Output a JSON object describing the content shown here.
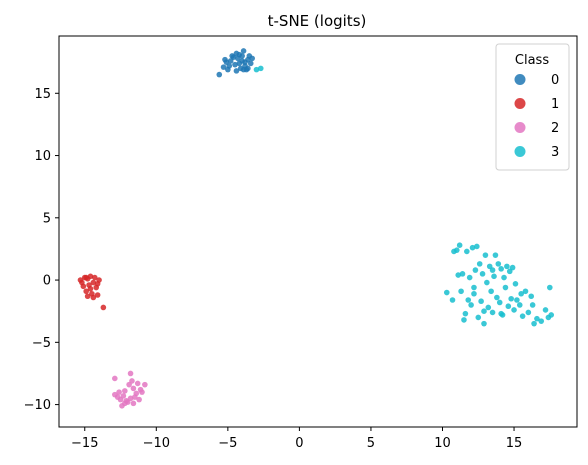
{
  "chart_data": {
    "type": "scatter",
    "title": "t-SNE (logits)",
    "xlabel": "",
    "ylabel": "",
    "xlim": [
      -16.8,
      19.4
    ],
    "ylim": [
      -11.8,
      19.6
    ],
    "xticks": [
      -15,
      -10,
      -5,
      0,
      5,
      10,
      15
    ],
    "yticks": [
      -10,
      -5,
      0,
      5,
      10,
      15
    ],
    "xtick_labels": [
      "−15",
      "−10",
      "−5",
      "0",
      "5",
      "10",
      "15"
    ],
    "ytick_labels": [
      "−10",
      "−5",
      "0",
      "5",
      "10",
      "15"
    ],
    "grid": false,
    "legend": {
      "title": "Class",
      "placement": "top-right",
      "entries": [
        "0",
        "1",
        "2",
        "3"
      ]
    },
    "series": [
      {
        "name": "0",
        "color": "#1f77b4",
        "points": [
          [
            -5.6,
            16.5
          ],
          [
            -5.3,
            17.1
          ],
          [
            -5.1,
            17.5
          ],
          [
            -5.0,
            16.9
          ],
          [
            -4.8,
            17.6
          ],
          [
            -4.7,
            18.0
          ],
          [
            -4.5,
            17.3
          ],
          [
            -4.4,
            16.8
          ],
          [
            -4.3,
            17.8
          ],
          [
            -4.2,
            18.1
          ],
          [
            -4.1,
            17.0
          ],
          [
            -4.0,
            17.6
          ],
          [
            -3.9,
            18.4
          ],
          [
            -3.8,
            17.2
          ],
          [
            -3.7,
            16.9
          ],
          [
            -3.6,
            17.7
          ],
          [
            -3.5,
            18.0
          ],
          [
            -3.4,
            17.4
          ],
          [
            -4.9,
            17.2
          ],
          [
            -4.6,
            17.9
          ],
          [
            -3.9,
            16.9
          ],
          [
            -4.2,
            17.4
          ],
          [
            -3.6,
            17.0
          ],
          [
            -4.4,
            18.2
          ],
          [
            -3.3,
            17.8
          ],
          [
            -5.2,
            17.7
          ],
          [
            -4.0,
            18.0
          ],
          [
            -3.8,
            17.5
          ]
        ]
      },
      {
        "name": "1",
        "color": "#d62728",
        "points": [
          [
            -15.3,
            0.0
          ],
          [
            -15.1,
            -0.5
          ],
          [
            -15.0,
            0.2
          ],
          [
            -14.9,
            -0.9
          ],
          [
            -14.8,
            0.1
          ],
          [
            -14.7,
            -0.4
          ],
          [
            -14.6,
            0.3
          ],
          [
            -14.5,
            -1.1
          ],
          [
            -14.4,
            -0.2
          ],
          [
            -14.3,
            0.2
          ],
          [
            -14.2,
            -0.6
          ],
          [
            -14.1,
            -0.3
          ],
          [
            -14.0,
            0.0
          ],
          [
            -14.8,
            -1.3
          ],
          [
            -14.4,
            -1.4
          ],
          [
            -14.1,
            -1.2
          ],
          [
            -13.7,
            -2.2
          ],
          [
            -15.2,
            -0.2
          ],
          [
            -14.6,
            -0.7
          ],
          [
            -14.9,
            0.2
          ]
        ]
      },
      {
        "name": "2",
        "color": "#e377c2",
        "points": [
          [
            -12.9,
            -7.9
          ],
          [
            -12.6,
            -9.0
          ],
          [
            -12.5,
            -9.6
          ],
          [
            -12.4,
            -10.1
          ],
          [
            -12.3,
            -9.3
          ],
          [
            -12.2,
            -8.9
          ],
          [
            -12.0,
            -9.8
          ],
          [
            -11.9,
            -8.4
          ],
          [
            -11.8,
            -9.5
          ],
          [
            -11.8,
            -7.5
          ],
          [
            -11.6,
            -8.7
          ],
          [
            -11.6,
            -9.9
          ],
          [
            -11.4,
            -9.1
          ],
          [
            -11.3,
            -8.3
          ],
          [
            -11.2,
            -9.6
          ],
          [
            -11.0,
            -9.0
          ],
          [
            -10.8,
            -8.4
          ],
          [
            -12.7,
            -9.4
          ],
          [
            -12.1,
            -9.7
          ],
          [
            -11.7,
            -8.1
          ],
          [
            -12.9,
            -9.2
          ],
          [
            -11.5,
            -9.4
          ],
          [
            -12.2,
            -9.9
          ],
          [
            -11.1,
            -8.8
          ]
        ]
      },
      {
        "name": "3",
        "color": "#17becf",
        "points": [
          [
            10.3,
            -1.0
          ],
          [
            10.7,
            -1.6
          ],
          [
            10.8,
            2.3
          ],
          [
            11.0,
            2.4
          ],
          [
            11.2,
            2.8
          ],
          [
            11.3,
            -0.9
          ],
          [
            11.4,
            0.5
          ],
          [
            11.5,
            -3.2
          ],
          [
            11.6,
            -2.7
          ],
          [
            11.7,
            2.3
          ],
          [
            11.8,
            -1.6
          ],
          [
            11.9,
            0.2
          ],
          [
            12.0,
            -2.0
          ],
          [
            12.1,
            2.6
          ],
          [
            12.2,
            -0.6
          ],
          [
            12.3,
            0.8
          ],
          [
            12.4,
            2.7
          ],
          [
            12.5,
            -3.0
          ],
          [
            12.6,
            1.3
          ],
          [
            12.7,
            -1.7
          ],
          [
            12.8,
            0.5
          ],
          [
            12.9,
            -3.5
          ],
          [
            13.0,
            2.0
          ],
          [
            13.1,
            -0.2
          ],
          [
            13.2,
            -2.2
          ],
          [
            13.3,
            1.1
          ],
          [
            13.4,
            -0.9
          ],
          [
            13.5,
            -2.6
          ],
          [
            13.6,
            0.3
          ],
          [
            13.7,
            2.0
          ],
          [
            13.8,
            -1.4
          ],
          [
            13.9,
            1.3
          ],
          [
            14.0,
            -1.8
          ],
          [
            14.1,
            0.9
          ],
          [
            14.2,
            -2.8
          ],
          [
            14.3,
            0.2
          ],
          [
            14.4,
            -0.6
          ],
          [
            14.5,
            1.1
          ],
          [
            14.6,
            -2.1
          ],
          [
            14.7,
            0.7
          ],
          [
            14.8,
            -1.5
          ],
          [
            14.9,
            1.0
          ],
          [
            15.0,
            -2.4
          ],
          [
            15.1,
            -0.3
          ],
          [
            15.2,
            -1.6
          ],
          [
            15.4,
            -2.0
          ],
          [
            15.6,
            -2.9
          ],
          [
            15.8,
            -0.9
          ],
          [
            16.0,
            -2.6
          ],
          [
            16.2,
            -1.3
          ],
          [
            16.4,
            -3.5
          ],
          [
            16.6,
            -3.1
          ],
          [
            16.9,
            -3.3
          ],
          [
            17.2,
            -2.4
          ],
          [
            17.4,
            -3.0
          ],
          [
            17.5,
            -0.6
          ],
          [
            17.6,
            -2.8
          ],
          [
            12.2,
            -1.1
          ],
          [
            13.5,
            0.8
          ],
          [
            14.1,
            -2.7
          ],
          [
            11.1,
            0.4
          ],
          [
            12.9,
            -2.5
          ],
          [
            15.5,
            -1.1
          ],
          [
            16.3,
            -2.0
          ],
          [
            -3.0,
            16.9
          ],
          [
            -2.7,
            17.0
          ]
        ]
      }
    ]
  }
}
